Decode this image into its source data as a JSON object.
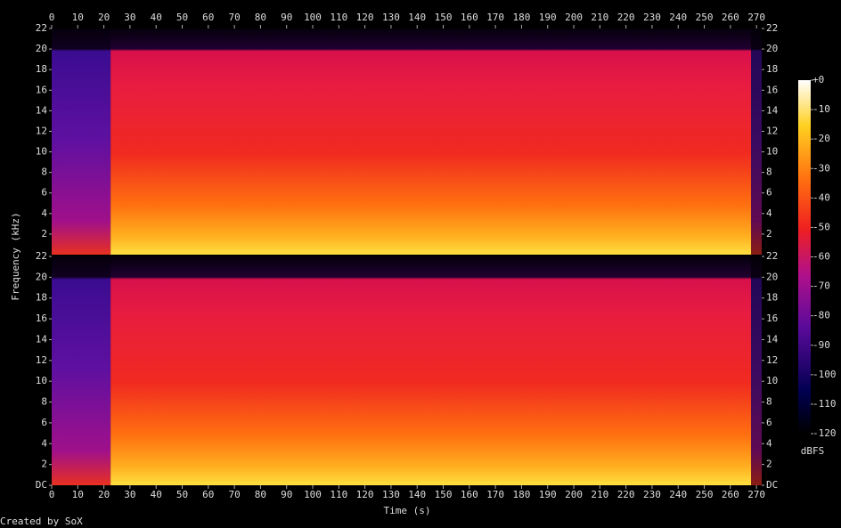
{
  "chart_data": {
    "type": "spectrogram",
    "xlabel": "Time (s)",
    "ylabel": "Frequency (kHz)",
    "footer": "Created by SoX",
    "xlim": [
      0,
      272
    ],
    "xticks": [
      0,
      10,
      20,
      30,
      40,
      50,
      60,
      70,
      80,
      90,
      100,
      110,
      120,
      130,
      140,
      150,
      160,
      170,
      180,
      190,
      200,
      210,
      220,
      230,
      240,
      250,
      260,
      270
    ],
    "channels": [
      {
        "ylim": [
          0,
          22
        ],
        "yticks": [
          2,
          4,
          6,
          8,
          10,
          12,
          14,
          16,
          18,
          20,
          22
        ]
      },
      {
        "ylim": [
          0,
          22
        ],
        "yticks": [
          {
            "value": 0,
            "label": "DC"
          },
          2,
          4,
          6,
          8,
          10,
          12,
          14,
          16,
          18,
          20,
          22
        ]
      }
    ],
    "colorbar": {
      "label": "dBFS",
      "lim": [
        -120,
        0
      ],
      "ticks": [
        {
          "value": 0,
          "label": "+0"
        },
        -10,
        -20,
        -30,
        -40,
        -50,
        -60,
        -70,
        -80,
        -90,
        -100,
        -110,
        -120
      ]
    }
  }
}
